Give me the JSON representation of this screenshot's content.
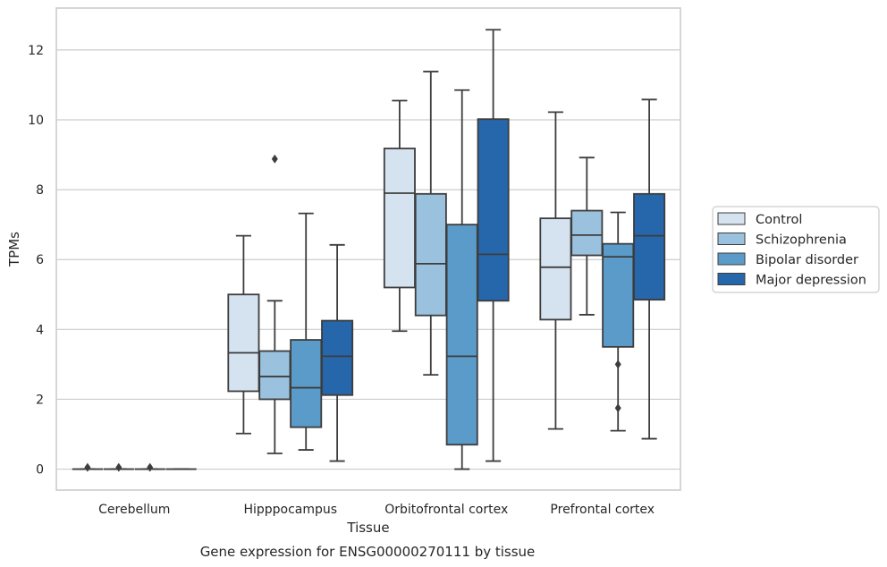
{
  "chart_data": {
    "type": "box",
    "xlabel": "Tissue",
    "ylabel": "TPMs",
    "caption": "Gene expression for ENSG00000270111 by tissue",
    "ylim": [
      -0.6,
      13.2
    ],
    "yticks": [
      0,
      2,
      4,
      6,
      8,
      10,
      12
    ],
    "grid": "horizontal",
    "legend_position": "right",
    "categories": [
      "Cerebellum",
      "Hipppocampus",
      "Orbitofrontal cortex",
      "Prefrontal cortex"
    ],
    "series": [
      {
        "name": "Control",
        "color": "#d5e3f1",
        "boxes": [
          {
            "min": 0,
            "q1": 0,
            "median": 0,
            "q3": 0,
            "max": 0,
            "outliers": [
              0.05
            ]
          },
          {
            "min": 1.02,
            "q1": 2.23,
            "median": 3.33,
            "q3": 5.0,
            "max": 6.68,
            "outliers": []
          },
          {
            "min": 3.95,
            "q1": 5.2,
            "median": 7.9,
            "q3": 9.18,
            "max": 10.55,
            "outliers": []
          },
          {
            "min": 1.15,
            "q1": 4.28,
            "median": 5.78,
            "q3": 7.18,
            "max": 10.22,
            "outliers": []
          }
        ]
      },
      {
        "name": "Schizophrenia",
        "color": "#9ac2de",
        "boxes": [
          {
            "min": 0,
            "q1": 0,
            "median": 0,
            "q3": 0,
            "max": 0,
            "outliers": [
              0.05
            ]
          },
          {
            "min": 0.45,
            "q1": 2.0,
            "median": 2.65,
            "q3": 3.38,
            "max": 4.82,
            "outliers": [
              8.88
            ]
          },
          {
            "min": 2.7,
            "q1": 4.4,
            "median": 5.88,
            "q3": 7.88,
            "max": 11.38,
            "outliers": []
          },
          {
            "min": 4.42,
            "q1": 6.12,
            "median": 6.7,
            "q3": 7.4,
            "max": 8.92,
            "outliers": []
          }
        ]
      },
      {
        "name": "Bipolar disorder",
        "color": "#5a9bc9",
        "boxes": [
          {
            "min": 0,
            "q1": 0,
            "median": 0,
            "q3": 0,
            "max": 0,
            "outliers": [
              0.05
            ]
          },
          {
            "min": 0.55,
            "q1": 1.2,
            "median": 2.33,
            "q3": 3.7,
            "max": 7.32,
            "outliers": []
          },
          {
            "min": 0.0,
            "q1": 0.7,
            "median": 3.23,
            "q3": 7.0,
            "max": 10.85,
            "outliers": []
          },
          {
            "min": 1.1,
            "q1": 3.5,
            "median": 6.08,
            "q3": 6.45,
            "max": 7.35,
            "outliers": [
              3.0,
              1.75
            ]
          }
        ]
      },
      {
        "name": "Major depression",
        "color": "#2666aa",
        "boxes": [
          {
            "min": 0,
            "q1": 0,
            "median": 0,
            "q3": 0,
            "max": 0,
            "outliers": []
          },
          {
            "min": 0.23,
            "q1": 2.12,
            "median": 3.23,
            "q3": 4.25,
            "max": 6.42,
            "outliers": []
          },
          {
            "min": 0.23,
            "q1": 4.82,
            "median": 6.15,
            "q3": 10.02,
            "max": 12.58,
            "outliers": []
          },
          {
            "min": 0.87,
            "q1": 4.85,
            "median": 6.68,
            "q3": 7.88,
            "max": 10.58,
            "outliers": []
          }
        ]
      }
    ]
  }
}
